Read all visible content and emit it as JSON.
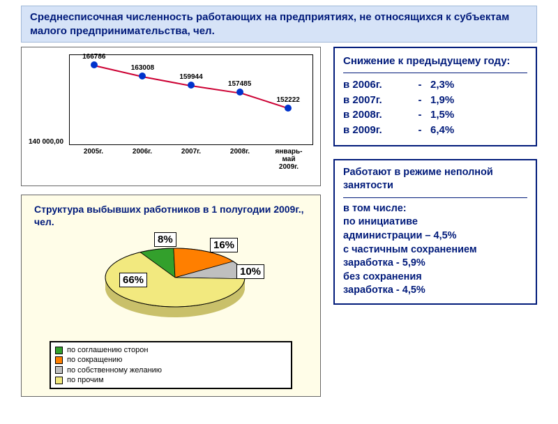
{
  "title": "Среднесписочная численность работающих на предприятиях, не относящихся к субъектам малого предпринимательства, чел.",
  "line_chart": {
    "type": "line",
    "categories": [
      "2005г.",
      "2006г.",
      "2007г.",
      "2008г.",
      "январь-\nмай\n2009г."
    ],
    "values": [
      166786,
      163008,
      159944,
      157485,
      152222
    ],
    "labels": [
      "166786",
      "163008",
      "159944",
      "157485",
      "152222"
    ],
    "ytick_label": "140 000,00",
    "ylim": [
      140000,
      170000
    ],
    "point_color": "#0033cc",
    "line_color": "#cc0033",
    "border_color": "#000000",
    "background": "#ffffff"
  },
  "decrease_box": {
    "heading": "Снижение к предыдущему году:",
    "rows": [
      {
        "year": "в 2006г.",
        "value": "2,3%"
      },
      {
        "year": "в 2007г.",
        "value": "1,9%"
      },
      {
        "year": "в 2008г.",
        "value": "1,5%"
      },
      {
        "year": "в 2009г.",
        "value": "6,4%"
      }
    ]
  },
  "parttime_box": {
    "heading": "Работают в режиме неполной  занятости",
    "lines": [
      "в том числе:",
      "по инициативе",
      "администрации – 4,5%",
      " с частичным сохранением",
      "заработка   -    5,9%",
      "без сохранения",
      "заработка   -    4,5%"
    ]
  },
  "pie": {
    "type": "pie3d",
    "title": "Структура выбывших работников  в 1 полугодии 2009г., чел.",
    "slices": [
      {
        "label": "по соглашению сторон",
        "pct": 8,
        "color": "#33a02c",
        "pct_text": "8%"
      },
      {
        "label": "по сокращению",
        "pct": 16,
        "color": "#ff7f00",
        "pct_text": "16%"
      },
      {
        "label": "по собственному желанию",
        "pct": 10,
        "color": "#bfbfbf",
        "pct_text": "10%"
      },
      {
        "label": "по прочим",
        "pct": 66,
        "color": "#f2e97f",
        "pct_text": "66%"
      }
    ],
    "panel_bg": "#fffde8",
    "border_color": "#000000"
  }
}
